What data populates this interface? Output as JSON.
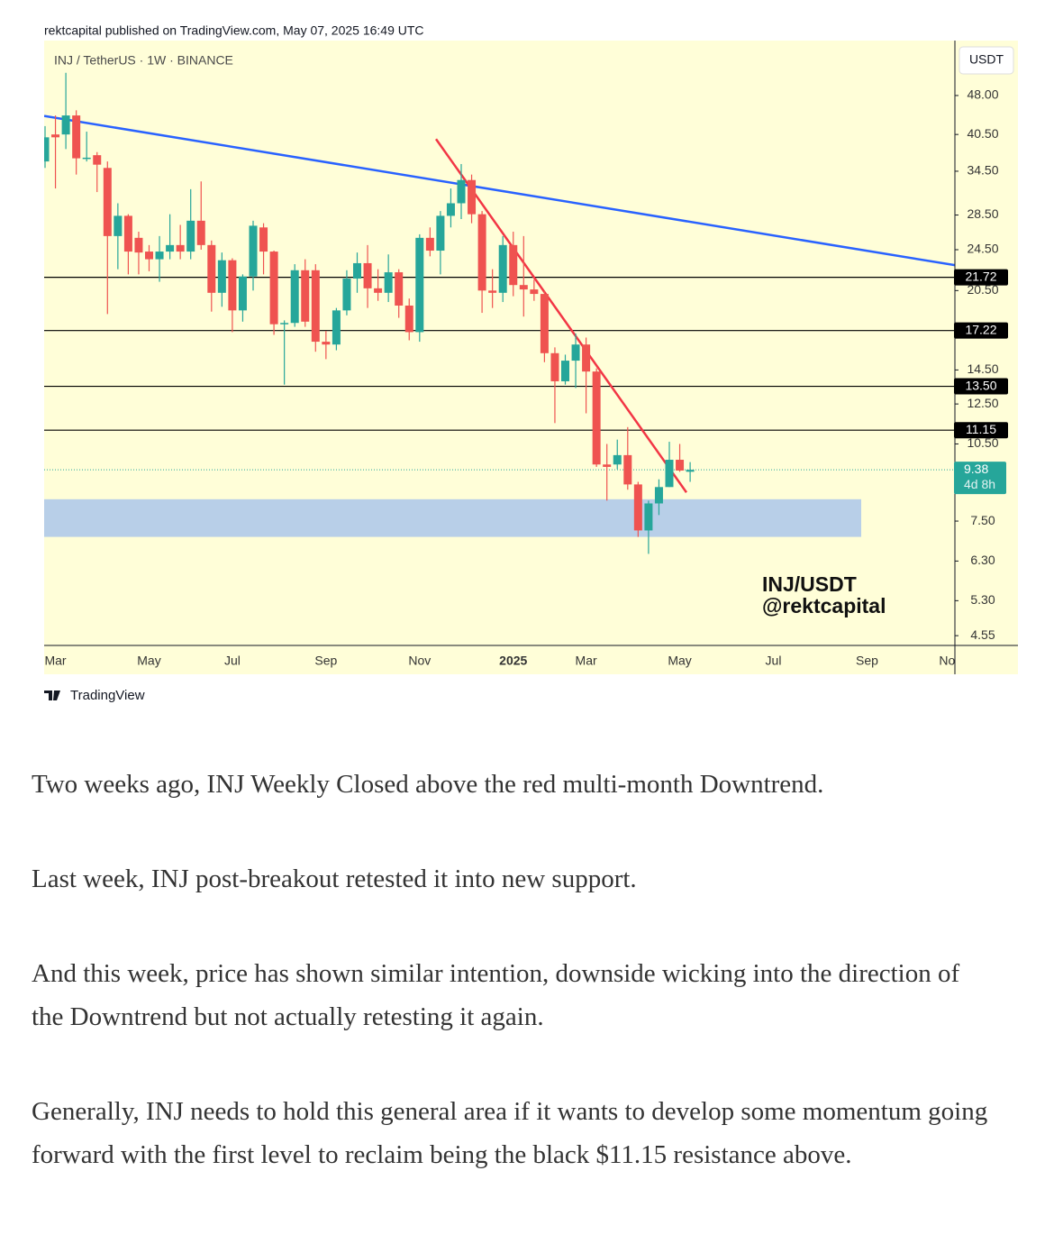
{
  "header": {
    "byline": "rektcapital published on TradingView.com, May 07, 2025 16:49 UTC"
  },
  "chart_data": {
    "type": "candlestick",
    "symbol": "INJ / TetherUS · 1W · BINANCE",
    "currency": "USDT",
    "watermark": [
      "INJ/USDT",
      "@rektcapital"
    ],
    "background": "#fffed8",
    "up_color": "#26a69a",
    "down_color": "#ef5350",
    "log_scale": true,
    "grid": false,
    "ylim": [
      4.36,
      61
    ],
    "yticks": [
      {
        "value": 4.55,
        "label": "4.55"
      },
      {
        "value": 5.3,
        "label": "5.30"
      },
      {
        "value": 6.3,
        "label": "6.30"
      },
      {
        "value": 7.5,
        "label": "7.50"
      },
      {
        "value": 10.5,
        "label": "10.50"
      },
      {
        "value": 12.5,
        "label": "12.50"
      },
      {
        "value": 14.5,
        "label": "14.50"
      },
      {
        "value": 20.5,
        "label": "20.50"
      },
      {
        "value": 24.5,
        "label": "24.50"
      },
      {
        "value": 28.5,
        "label": "28.50"
      },
      {
        "value": 34.5,
        "label": "34.50"
      },
      {
        "value": 40.5,
        "label": "40.50"
      },
      {
        "value": 48,
        "label": "48.00"
      }
    ],
    "categories": [
      null,
      "Mar",
      null,
      null,
      null,
      null,
      null,
      null,
      null,
      null,
      "May",
      null,
      null,
      null,
      null,
      null,
      null,
      null,
      "Jul",
      null,
      null,
      null,
      null,
      null,
      null,
      null,
      null,
      "Sep",
      null,
      null,
      null,
      null,
      null,
      null,
      null,
      null,
      "Nov",
      null,
      null,
      null,
      null,
      null,
      null,
      null,
      null,
      "2025",
      null,
      null,
      null,
      null,
      null,
      null,
      "Mar",
      null,
      null,
      null,
      null,
      null,
      null,
      null,
      null,
      "May",
      null,
      null,
      null,
      null,
      null,
      null,
      null,
      null,
      "Jul",
      null,
      null,
      null,
      null,
      null,
      null,
      null,
      null,
      "Sep",
      null,
      null,
      null,
      null,
      null,
      null,
      null,
      "Nov"
    ],
    "open": [
      36,
      40.5,
      40.5,
      44,
      36.5,
      37,
      35,
      26,
      28.4,
      25.8,
      24.3,
      23.5,
      24.3,
      25,
      24.3,
      27.8,
      25,
      20.3,
      23.4,
      18.8,
      21.8,
      27,
      24.3,
      17.7,
      17.8,
      22.4,
      22.4,
      16.4,
      16.2,
      18.8,
      21.6,
      23.1,
      20.7,
      20.3,
      22.2,
      19.2,
      17.1,
      25.8,
      24.4,
      28.4,
      30,
      33.2,
      28.6,
      20.5,
      20.3,
      25,
      21,
      20.6,
      20.2,
      15.6,
      13.8,
      15.1,
      16.2,
      14.4,
      9.6,
      9.6,
      10,
      8.8,
      7.2,
      8.1,
      8.7,
      9.8,
      9.3,
      null,
      null,
      null,
      null,
      null,
      null,
      null,
      null,
      null,
      null,
      null,
      null,
      null,
      null,
      null,
      null,
      null,
      null,
      null,
      null,
      null,
      null,
      null,
      null,
      null
    ],
    "high": [
      42,
      44,
      53,
      45,
      41,
      37.5,
      36,
      30,
      28.6,
      26.5,
      25,
      26,
      28.6,
      27.3,
      31.9,
      33,
      25.5,
      24.2,
      23.6,
      22,
      27.8,
      27.5,
      24.4,
      18,
      23,
      23.5,
      23,
      17.2,
      19,
      22.4,
      24.2,
      25,
      22.5,
      24,
      22.5,
      19.8,
      26.2,
      27,
      29,
      32,
      35.6,
      34,
      29,
      22.5,
      26,
      26.5,
      26,
      21.5,
      20.5,
      16,
      15.5,
      17,
      16.7,
      14.6,
      10.5,
      10.7,
      11.3,
      8.9,
      8.2,
      9,
      10.6,
      10.5,
      9.7,
      null,
      null,
      null,
      null,
      null,
      null,
      null,
      null,
      null,
      null,
      null,
      null,
      null,
      null,
      null,
      null,
      null,
      null,
      null,
      null,
      null,
      null,
      null,
      null,
      null
    ],
    "low": [
      35,
      32,
      38,
      34,
      36,
      31.5,
      18.5,
      22.5,
      22,
      22,
      22.3,
      21.3,
      23.5,
      23.5,
      23.5,
      24.5,
      18.7,
      19.1,
      17.1,
      17.9,
      20.5,
      22,
      16.9,
      13.6,
      17.5,
      17.5,
      15.7,
      15.2,
      15.8,
      18.4,
      20.3,
      19,
      19.6,
      19.5,
      18.2,
      16.5,
      16.4,
      23.8,
      22,
      27,
      28,
      27.5,
      18.6,
      19,
      19.5,
      20,
      18.3,
      19.6,
      15,
      11.5,
      13.6,
      13.4,
      12,
      9.5,
      8.2,
      9.4,
      8.6,
      7,
      6.5,
      7.7,
      8.7,
      9.3,
      8.9,
      null,
      null,
      null,
      null,
      null,
      null,
      null,
      null,
      null,
      null,
      null,
      null,
      null,
      null,
      null,
      null,
      null,
      null,
      null,
      null,
      null,
      null,
      null,
      null,
      null
    ],
    "close": [
      40,
      40,
      44,
      36.5,
      36.6,
      35.5,
      26,
      28.4,
      24.3,
      24.2,
      23.5,
      24.3,
      25,
      24.3,
      27.8,
      25,
      20.3,
      23.4,
      18.8,
      21.8,
      27.2,
      24.3,
      17.7,
      17.8,
      22.4,
      17.9,
      16.4,
      16.2,
      18.8,
      21.6,
      23.1,
      20.7,
      20.3,
      22.2,
      19.2,
      17.1,
      25.8,
      24.4,
      28.4,
      30,
      33.2,
      28.6,
      20.5,
      20.3,
      25,
      21,
      20.6,
      20.2,
      15.6,
      13.8,
      15.1,
      16.2,
      14.4,
      9.6,
      9.5,
      10,
      8.8,
      7.2,
      8.1,
      8.7,
      9.8,
      9.35,
      9.38,
      null,
      null,
      null,
      null,
      null,
      null,
      null,
      null,
      null,
      null,
      null,
      null,
      null,
      null,
      null,
      null,
      null,
      null,
      null,
      null,
      null,
      null,
      null,
      null,
      null
    ],
    "levels": [
      21.72,
      17.22,
      {
        "value": 13.5,
        "label": "13.50"
      },
      11.15
    ],
    "level_color": "#000000",
    "zone": {
      "low": 7.0,
      "high": 8.25,
      "color": "#b8cfe8"
    },
    "trendlines": [
      {
        "color": "#2962ff",
        "start": 43.9,
        "end": 22.9
      },
      {
        "color": "#f23645",
        "start": 39.7,
        "end": 8.5
      }
    ],
    "last_price": 9.38,
    "countdown": "4d 8h"
  },
  "footer_logo": "TradingView",
  "article": {
    "paragraphs": [
      "Two weeks ago, INJ Weekly Closed above the red multi-month Downtrend.",
      "Last week, INJ post-breakout retested it into new support.",
      "And this week, price has shown similar intention, downside wicking into the direction of the Downtrend but not actually retesting it again.",
      "Generally, INJ needs to hold this general area if it wants to develop some momentum going forward with the first level to reclaim being the black $11.15 resistance above."
    ]
  }
}
